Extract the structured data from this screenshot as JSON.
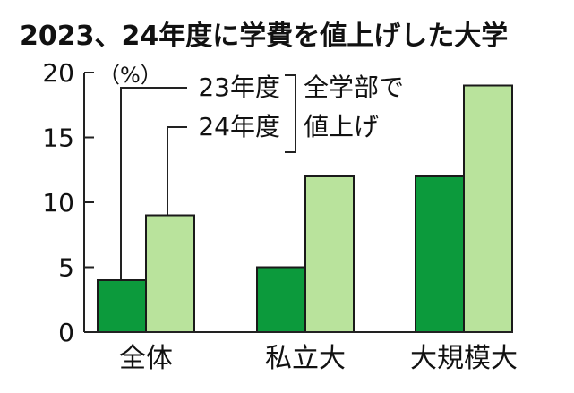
{
  "chart_data": {
    "type": "bar",
    "title": "2023、24年度に学費を値上げした大学",
    "unit_label": "（%）",
    "categories": [
      "全体",
      "私立大",
      "大規模大"
    ],
    "series": [
      {
        "name": "23年度",
        "values": [
          4,
          5,
          12
        ],
        "color": "#0c9a3c"
      },
      {
        "name": "24年度",
        "values": [
          9,
          12,
          19
        ],
        "color": "#b9e39c"
      }
    ],
    "legend_group_label": [
      "全学部で",
      "値上げ"
    ],
    "ylim": [
      0,
      20
    ],
    "y_ticks": [
      0,
      5,
      10,
      15,
      20
    ],
    "grid": false,
    "legend_placement": "top-left"
  }
}
